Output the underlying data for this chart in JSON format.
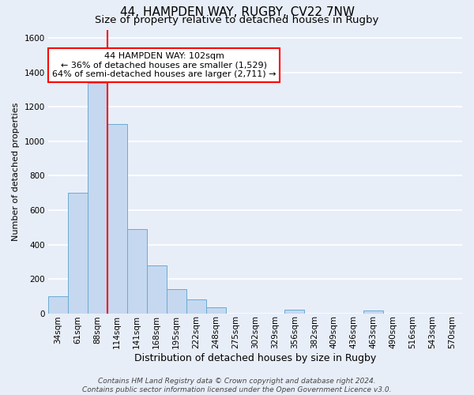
{
  "title_line1": "44, HAMPDEN WAY, RUGBY, CV22 7NW",
  "title_line2": "Size of property relative to detached houses in Rugby",
  "xlabel": "Distribution of detached houses by size in Rugby",
  "ylabel": "Number of detached properties",
  "bar_labels": [
    "34sqm",
    "61sqm",
    "88sqm",
    "114sqm",
    "141sqm",
    "168sqm",
    "195sqm",
    "222sqm",
    "248sqm",
    "275sqm",
    "302sqm",
    "329sqm",
    "356sqm",
    "382sqm",
    "409sqm",
    "436sqm",
    "463sqm",
    "490sqm",
    "516sqm",
    "543sqm",
    "570sqm"
  ],
  "bar_values": [
    100,
    700,
    1340,
    1100,
    490,
    280,
    140,
    80,
    35,
    0,
    0,
    0,
    20,
    0,
    0,
    0,
    15,
    0,
    0,
    0,
    0
  ],
  "bar_color": "#c5d8f0",
  "bar_edgecolor": "#6aabd2",
  "vline_bar_index": 2,
  "vline_position": 2.5,
  "vline_color": "red",
  "vline_linewidth": 1.5,
  "annotation_text": "44 HAMPDEN WAY: 102sqm\n← 36% of detached houses are smaller (1,529)\n64% of semi-detached houses are larger (2,711) →",
  "annotation_box_edgecolor": "red",
  "annotation_box_facecolor": "white",
  "ylim": [
    0,
    1650
  ],
  "yticks": [
    0,
    200,
    400,
    600,
    800,
    1000,
    1200,
    1400,
    1600
  ],
  "footer_line1": "Contains HM Land Registry data © Crown copyright and database right 2024.",
  "footer_line2": "Contains public sector information licensed under the Open Government Licence v3.0.",
  "bg_color": "#e8eef8",
  "plot_bg_color": "#e8eef8",
  "grid_color": "white",
  "title1_fontsize": 11,
  "title2_fontsize": 9.5,
  "xlabel_fontsize": 9,
  "ylabel_fontsize": 8,
  "tick_fontsize": 7.5,
  "annot_fontsize": 8,
  "footer_fontsize": 6.5
}
